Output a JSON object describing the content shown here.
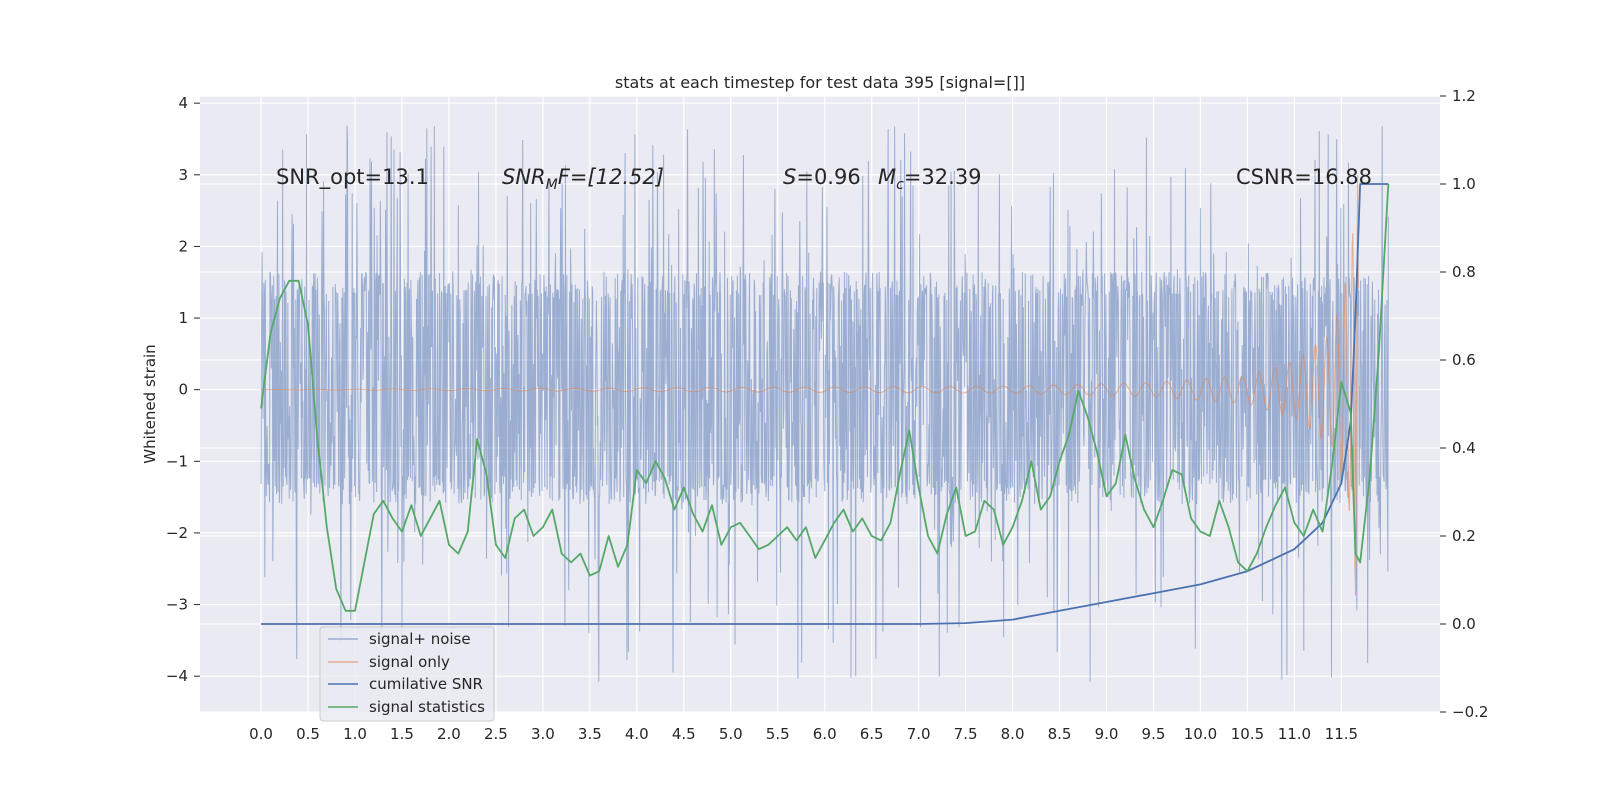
{
  "chart_data": {
    "type": "line",
    "title": "stats at each timestep for test data 395 [signal=[]]",
    "ylabel_left": "Whitened strain",
    "ylabel_right": "",
    "xlabel": "",
    "grid": true,
    "legend_position": "lower-left",
    "xlim": [
      -0.65,
      12.55
    ],
    "ylim_left": [
      -4.5,
      4.1
    ],
    "ylim_right": [
      -0.2,
      1.2
    ],
    "x_ticks": [
      "0.0",
      "0.5",
      "1.0",
      "1.5",
      "2.0",
      "2.5",
      "3.0",
      "3.5",
      "4.0",
      "4.5",
      "5.0",
      "5.5",
      "6.0",
      "6.5",
      "7.0",
      "7.5",
      "8.0",
      "8.5",
      "9.0",
      "9.5",
      "10.0",
      "10.5",
      "11.0",
      "11.5"
    ],
    "y_ticks_left": [
      "4",
      "3",
      "2",
      "1",
      "0",
      "−1",
      "−2",
      "−3",
      "−4"
    ],
    "y_ticks_right": [
      "1.2",
      "1.0",
      "0.8",
      "0.6",
      "0.4",
      "0.2",
      "0.0",
      "−0.2"
    ],
    "annotations": {
      "snr_opt": "SNR_opt=13.1",
      "snr_mf_main": "SNR",
      "snr_mf_sub": "M",
      "snr_mf_rest": "F=[12.52]",
      "s_main": "S",
      "s_rest": "=0.96",
      "mc_main": "M",
      "mc_sub": "c",
      "mc_rest": "=32.39",
      "csnr": "CSNR=16.88"
    },
    "series": [
      {
        "name": "signal+ noise",
        "axis": "left",
        "color": "#4c72b0",
        "description": "noisy whitened strain, dense oscillation roughly within ±2 with spikes to ±3.7",
        "envelope": {
          "lower": -1.6,
          "upper": 1.65,
          "spike_max": 3.7,
          "spike_min": -4.1
        },
        "x_range": [
          0.0,
          12.0
        ]
      },
      {
        "name": "signal only",
        "axis": "left",
        "color": "#dd8452",
        "description": "chirp signal, flat near 0 then growing amplitude until merger near x=11.65",
        "amplitude_points": [
          [
            0.0,
            0.0
          ],
          [
            8.0,
            0.05
          ],
          [
            9.5,
            0.1
          ],
          [
            10.5,
            0.2
          ],
          [
            11.0,
            0.4
          ],
          [
            11.4,
            0.8
          ],
          [
            11.6,
            1.8
          ],
          [
            11.65,
            3.0
          ]
        ],
        "x_range": [
          0.0,
          11.68
        ]
      },
      {
        "name": "cumilative SNR",
        "axis": "right",
        "color": "#4c72b0",
        "x": [
          0.0,
          7.0,
          7.5,
          8.0,
          8.5,
          9.0,
          9.5,
          10.0,
          10.5,
          11.0,
          11.3,
          11.5,
          11.6,
          11.65,
          11.7,
          12.0
        ],
        "values": [
          0.0,
          0.0,
          0.002,
          0.01,
          0.03,
          0.05,
          0.07,
          0.09,
          0.12,
          0.17,
          0.23,
          0.32,
          0.46,
          0.7,
          1.0,
          1.0
        ]
      },
      {
        "name": "signal statistics",
        "axis": "right",
        "color": "#55a868",
        "x": [
          0.0,
          0.1,
          0.2,
          0.3,
          0.4,
          0.5,
          0.6,
          0.7,
          0.8,
          0.9,
          1.0,
          1.1,
          1.2,
          1.3,
          1.4,
          1.5,
          1.6,
          1.7,
          1.8,
          1.9,
          2.0,
          2.1,
          2.2,
          2.3,
          2.4,
          2.5,
          2.6,
          2.7,
          2.8,
          2.9,
          3.0,
          3.1,
          3.2,
          3.3,
          3.4,
          3.5,
          3.6,
          3.7,
          3.8,
          3.9,
          4.0,
          4.1,
          4.2,
          4.3,
          4.4,
          4.5,
          4.6,
          4.7,
          4.8,
          4.9,
          5.0,
          5.1,
          5.2,
          5.3,
          5.4,
          5.5,
          5.6,
          5.7,
          5.8,
          5.9,
          6.0,
          6.1,
          6.2,
          6.3,
          6.4,
          6.5,
          6.6,
          6.7,
          6.8,
          6.9,
          7.0,
          7.1,
          7.2,
          7.3,
          7.4,
          7.5,
          7.6,
          7.7,
          7.8,
          7.9,
          8.0,
          8.1,
          8.2,
          8.3,
          8.4,
          8.5,
          8.6,
          8.7,
          8.8,
          8.9,
          9.0,
          9.1,
          9.2,
          9.3,
          9.4,
          9.5,
          9.6,
          9.7,
          9.8,
          9.9,
          10.0,
          10.1,
          10.2,
          10.3,
          10.4,
          10.5,
          10.6,
          10.7,
          10.8,
          10.9,
          11.0,
          11.1,
          11.2,
          11.3,
          11.4,
          11.5,
          11.6,
          11.65,
          11.7,
          11.8,
          11.9,
          12.0
        ],
        "values": [
          0.49,
          0.66,
          0.74,
          0.78,
          0.78,
          0.68,
          0.42,
          0.22,
          0.08,
          0.03,
          0.03,
          0.14,
          0.25,
          0.28,
          0.24,
          0.21,
          0.27,
          0.2,
          0.24,
          0.28,
          0.18,
          0.16,
          0.21,
          0.42,
          0.34,
          0.18,
          0.15,
          0.24,
          0.26,
          0.2,
          0.22,
          0.26,
          0.16,
          0.14,
          0.16,
          0.11,
          0.12,
          0.2,
          0.13,
          0.18,
          0.35,
          0.32,
          0.37,
          0.33,
          0.26,
          0.31,
          0.25,
          0.21,
          0.27,
          0.18,
          0.22,
          0.23,
          0.2,
          0.17,
          0.18,
          0.2,
          0.22,
          0.19,
          0.22,
          0.15,
          0.19,
          0.23,
          0.26,
          0.21,
          0.24,
          0.2,
          0.19,
          0.23,
          0.34,
          0.44,
          0.31,
          0.2,
          0.16,
          0.25,
          0.31,
          0.2,
          0.21,
          0.28,
          0.26,
          0.18,
          0.22,
          0.28,
          0.37,
          0.26,
          0.29,
          0.37,
          0.43,
          0.53,
          0.47,
          0.39,
          0.29,
          0.32,
          0.43,
          0.33,
          0.26,
          0.22,
          0.28,
          0.35,
          0.34,
          0.24,
          0.21,
          0.2,
          0.28,
          0.22,
          0.14,
          0.12,
          0.16,
          0.22,
          0.27,
          0.31,
          0.23,
          0.2,
          0.26,
          0.21,
          0.36,
          0.55,
          0.48,
          0.16,
          0.14,
          0.33,
          0.62,
          1.0
        ]
      }
    ]
  }
}
